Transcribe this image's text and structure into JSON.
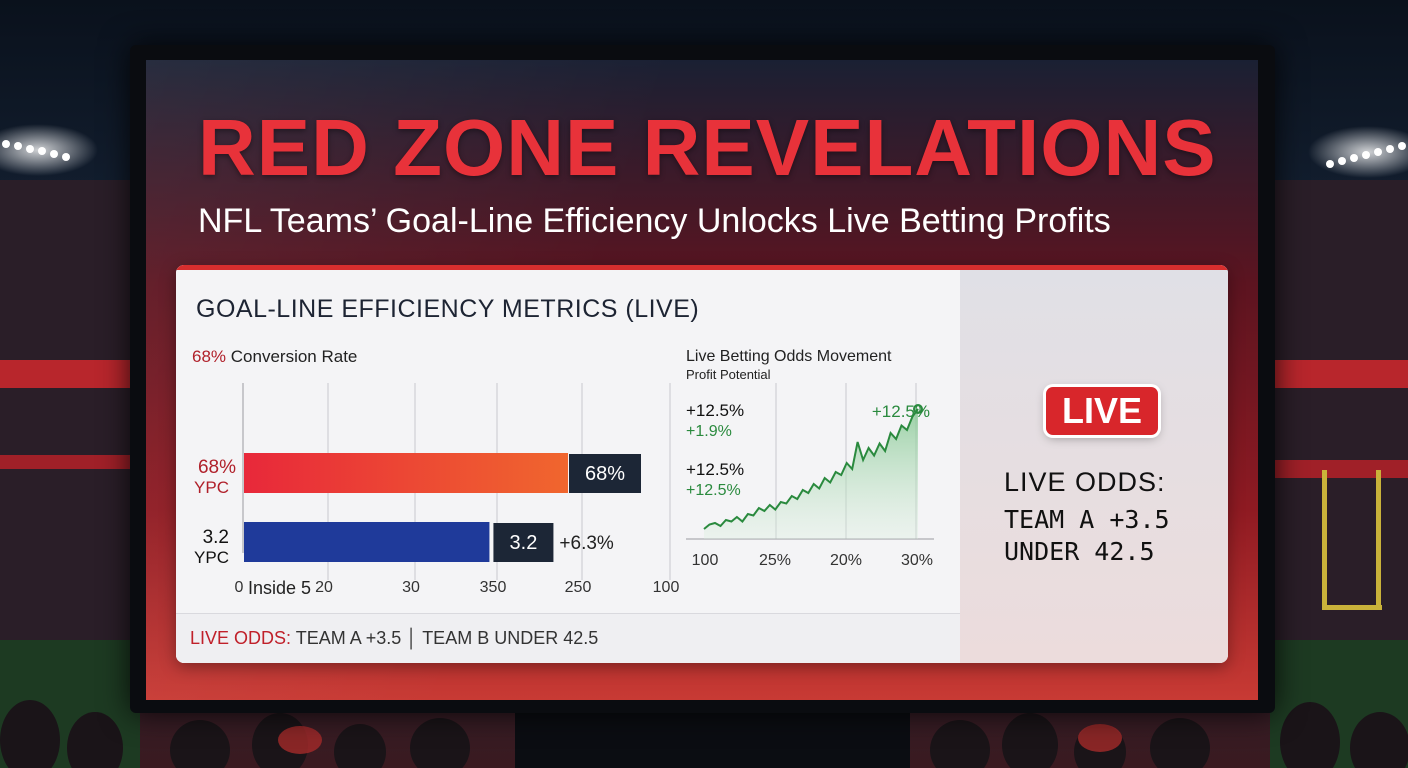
{
  "headline": "RED ZONE REVELATIONS",
  "subheadline": "NFL Teams’ Goal-Line Efficiency Unlocks Live Betting Profits",
  "panel": {
    "title": "GOAL-LINE EFFICIENCY METRICS (LIVE)",
    "conversion_pct": "68%",
    "conversion_label": "Conversion Rate"
  },
  "chart_data": [
    {
      "type": "bar",
      "orientation": "horizontal",
      "categories": [
        {
          "value_label": "68%",
          "unit_label": "YPC"
        },
        {
          "value_label": "3.2",
          "unit_label": "YPC"
        }
      ],
      "values": [
        68,
        3.2
      ],
      "bar_fractions": [
        0.8,
        0.606
      ],
      "data_labels": [
        "68%",
        "3.2"
      ],
      "extra_annotation": "+6.3%",
      "x_tick_labels": [
        "0",
        "20",
        "30",
        "350",
        "250",
        "100"
      ],
      "inner_label": "Inside 5",
      "colors": {
        "bar1_start": "#e8283a",
        "bar1_end": "#f0662e",
        "bar2": "#1f3a9a",
        "label_box": "#1c2636"
      }
    },
    {
      "type": "area",
      "title": "Live Betting Odds Movement",
      "subtitle": "Profit Potential",
      "annotations": [
        {
          "main": "+12.5%",
          "sub": "+1.9%"
        },
        {
          "main": "+12.5%",
          "sub": "+12.5%"
        }
      ],
      "end_label": "+12.5%",
      "x_tick_labels": [
        "100",
        "25%",
        "20%",
        "30%"
      ],
      "y": [
        0,
        3,
        4,
        2,
        6,
        5,
        8,
        5,
        10,
        9,
        14,
        12,
        16,
        13,
        18,
        17,
        22,
        20,
        26,
        24,
        30,
        27,
        34,
        31,
        38,
        36,
        44,
        40,
        58,
        46,
        54,
        49,
        57,
        52,
        64,
        60,
        69,
        66,
        75,
        80
      ],
      "colors": {
        "line": "#2a8a3e",
        "fill": "#bfe0c5"
      }
    }
  ],
  "footer": {
    "live_odds_label": "LIVE ODDS:",
    "odds_text": " TEAM A +3.5 │ TEAM B UNDER 42.5"
  },
  "side": {
    "badge": "LIVE",
    "odds_title": "LIVE ODDS:",
    "line1": "TEAM A +3.5",
    "line2": "UNDER 42.5"
  }
}
